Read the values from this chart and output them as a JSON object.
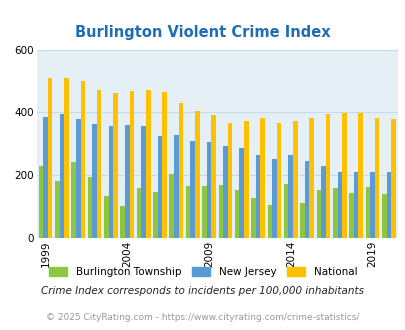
{
  "title": "Burlington Violent Crime Index",
  "years": [
    1999,
    2000,
    2001,
    2002,
    2003,
    2004,
    2005,
    2006,
    2007,
    2008,
    2009,
    2010,
    2011,
    2012,
    2013,
    2014,
    2015,
    2016,
    2017,
    2018,
    2019,
    2020
  ],
  "burlington": [
    228,
    182,
    240,
    192,
    133,
    100,
    158,
    147,
    203,
    165,
    165,
    168,
    152,
    127,
    105,
    170,
    110,
    152,
    158,
    143,
    160,
    140
  ],
  "new_jersey": [
    385,
    393,
    377,
    363,
    355,
    360,
    355,
    324,
    327,
    308,
    305,
    293,
    285,
    262,
    252,
    262,
    244,
    228,
    209,
    208,
    209,
    210
  ],
  "national": [
    510,
    508,
    498,
    471,
    462,
    468,
    470,
    464,
    428,
    405,
    390,
    365,
    373,
    383,
    365,
    372,
    383,
    393,
    398,
    396,
    383,
    378
  ],
  "burlington_color": "#8dc63f",
  "nj_color": "#5b9bd5",
  "national_color": "#ffc000",
  "bg_color": "#e4f0f6",
  "ylim": [
    0,
    600
  ],
  "yticks": [
    0,
    200,
    400,
    600
  ],
  "xtick_years": [
    1999,
    2004,
    2009,
    2014,
    2019
  ],
  "legend_labels": [
    "Burlington Township",
    "New Jersey",
    "National"
  ],
  "footer1": "Crime Index corresponds to incidents per 100,000 inhabitants",
  "footer2": "© 2025 CityRating.com - https://www.cityrating.com/crime-statistics/",
  "title_color": "#1f6eb5",
  "footer1_color": "#222222",
  "footer2_color": "#999999",
  "grid_color": "#c8dce8"
}
